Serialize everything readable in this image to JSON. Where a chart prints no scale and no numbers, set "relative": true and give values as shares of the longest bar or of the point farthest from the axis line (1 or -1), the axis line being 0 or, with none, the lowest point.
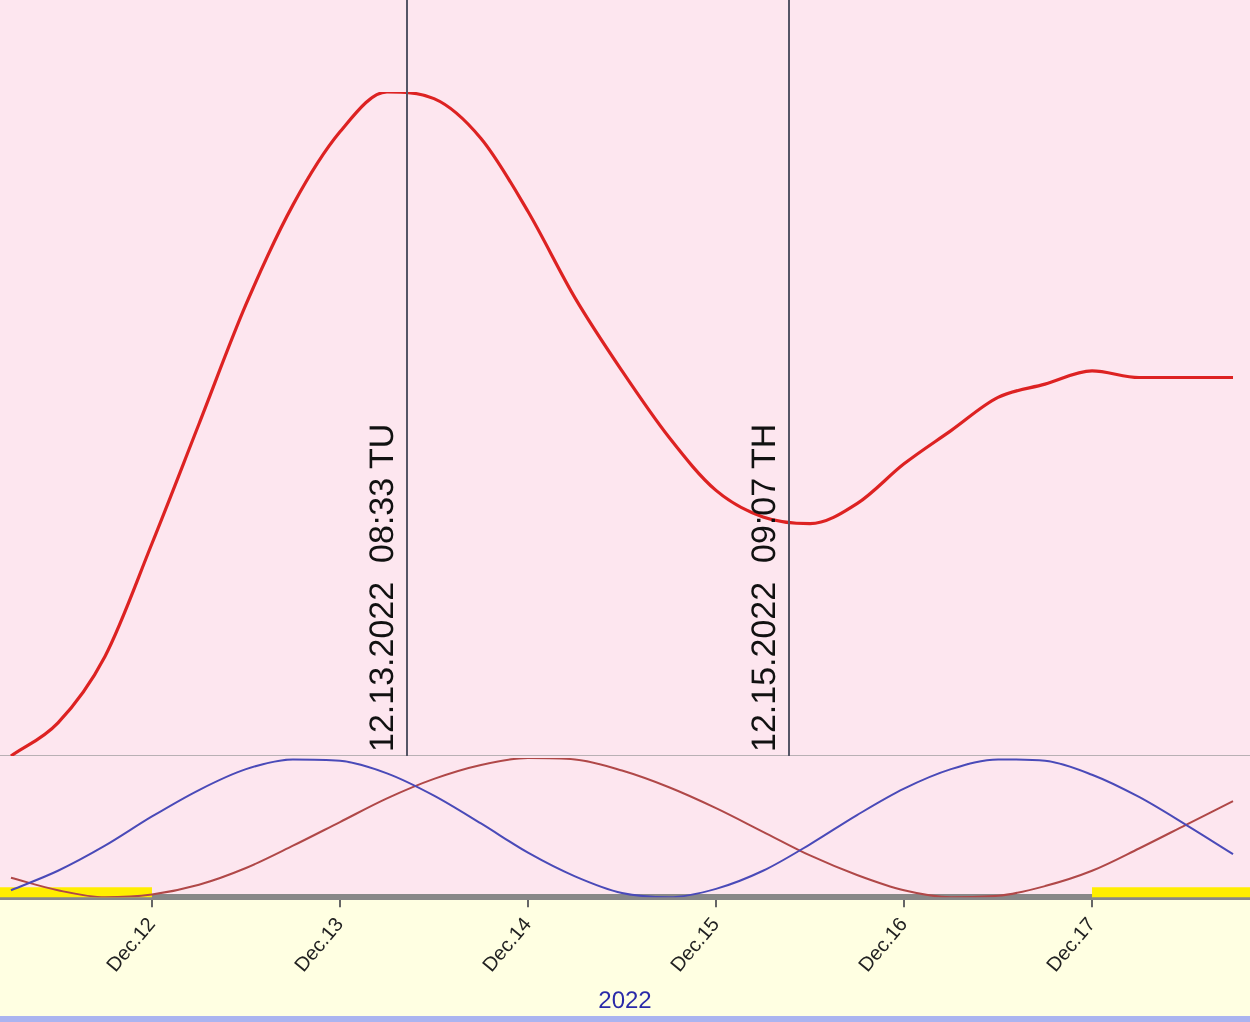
{
  "chart_data": [
    {
      "type": "line",
      "relative": true,
      "tick_labels": false,
      "grid": false,
      "legend": false,
      "marker": "none",
      "xlim": [
        "2022-12-11T04:36",
        "2022-12-17T20:10"
      ],
      "x": [
        "2022-12-11T06:00",
        "2022-12-11T12:00",
        "2022-12-11T18:00",
        "2022-12-12T00:00",
        "2022-12-12T06:00",
        "2022-12-12T12:00",
        "2022-12-12T18:00",
        "2022-12-13T00:00",
        "2022-12-13T06:00",
        "2022-12-13T12:00",
        "2022-12-13T18:00",
        "2022-12-14T00:00",
        "2022-12-14T06:00",
        "2022-12-14T12:00",
        "2022-12-14T18:00",
        "2022-12-15T00:00",
        "2022-12-15T06:00",
        "2022-12-15T12:00",
        "2022-12-15T18:00",
        "2022-12-16T00:00",
        "2022-12-16T06:00",
        "2022-12-16T12:00",
        "2022-12-16T18:00",
        "2022-12-17T00:00",
        "2022-12-17T06:00",
        "2022-12-17T12:00",
        "2022-12-17T18:00"
      ],
      "series": [
        {
          "color": "#dd2222",
          "values": [
            0.0,
            0.05,
            0.15,
            0.32,
            0.5,
            0.68,
            0.83,
            0.94,
            1.0,
            0.99,
            0.93,
            0.82,
            0.69,
            0.58,
            0.48,
            0.4,
            0.36,
            0.35,
            0.38,
            0.44,
            0.49,
            0.54,
            0.56,
            0.58,
            0.57,
            0.57,
            0.57
          ]
        }
      ],
      "ref_lines": [
        {
          "axis": "x",
          "value": "2022-12-13T08:33",
          "label": "12.13.2022  08:33 TU",
          "color": "#555566"
        },
        {
          "axis": "x",
          "value": "2022-12-15T09:07",
          "label": "12.15.2022  09:07 TH",
          "color": "#555566"
        }
      ]
    },
    {
      "type": "line",
      "relative": true,
      "tick_labels": "x",
      "grid": false,
      "legend": false,
      "marker": "none",
      "xlabel": "2022",
      "xlim": [
        "2022-12-11T04:36",
        "2022-12-17T20:10"
      ],
      "xticks": [
        {
          "value": "2022-12-12",
          "label": "Dec.12"
        },
        {
          "value": "2022-12-13",
          "label": "Dec.13"
        },
        {
          "value": "2022-12-14",
          "label": "Dec.14"
        },
        {
          "value": "2022-12-15",
          "label": "Dec.15"
        },
        {
          "value": "2022-12-16",
          "label": "Dec.16"
        },
        {
          "value": "2022-12-17",
          "label": "Dec.17"
        }
      ],
      "x": [
        "2022-12-11T06:00",
        "2022-12-11T12:00",
        "2022-12-11T18:00",
        "2022-12-12T00:00",
        "2022-12-12T06:00",
        "2022-12-12T12:00",
        "2022-12-12T18:00",
        "2022-12-13T00:00",
        "2022-12-13T06:00",
        "2022-12-13T12:00",
        "2022-12-13T18:00",
        "2022-12-14T00:00",
        "2022-12-14T06:00",
        "2022-12-14T12:00",
        "2022-12-14T18:00",
        "2022-12-15T00:00",
        "2022-12-15T06:00",
        "2022-12-15T12:00",
        "2022-12-15T18:00",
        "2022-12-16T00:00",
        "2022-12-16T06:00",
        "2022-12-16T12:00",
        "2022-12-16T18:00",
        "2022-12-17T00:00",
        "2022-12-17T06:00",
        "2022-12-17T12:00",
        "2022-12-17T18:00"
      ],
      "series": [
        {
          "color": "#4a4ab8",
          "values": [
            0.05,
            0.19,
            0.37,
            0.58,
            0.77,
            0.92,
            0.99,
            0.98,
            0.89,
            0.73,
            0.53,
            0.32,
            0.15,
            0.03,
            0.0,
            0.06,
            0.19,
            0.38,
            0.59,
            0.78,
            0.92,
            0.99,
            0.98,
            0.88,
            0.72,
            0.52,
            0.31
          ]
        },
        {
          "color": "#b04848",
          "values": [
            0.14,
            0.05,
            0.0,
            0.02,
            0.09,
            0.21,
            0.37,
            0.54,
            0.71,
            0.85,
            0.95,
            1.0,
            0.99,
            0.91,
            0.79,
            0.64,
            0.47,
            0.3,
            0.16,
            0.05,
            0.0,
            0.01,
            0.08,
            0.19,
            0.35,
            0.52,
            0.69
          ]
        }
      ],
      "bands": [
        {
          "axis": "x",
          "from": "2022-12-11",
          "to": "2022-12-12",
          "color": "#ffee00"
        },
        {
          "axis": "x",
          "from": "2022-12-17",
          "to": "2022-12-18",
          "color": "#ffee00"
        }
      ]
    }
  ]
}
